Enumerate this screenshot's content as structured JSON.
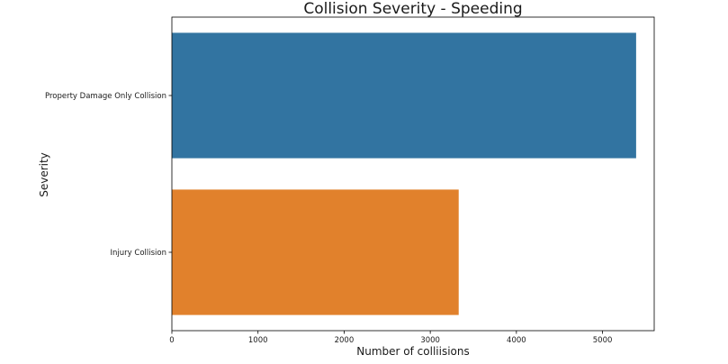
{
  "chart_data": {
    "type": "bar",
    "orientation": "horizontal",
    "title": "Collision Severity - Speeding",
    "xlabel": "Number of colliisions",
    "ylabel": "Severity",
    "categories": [
      "Property Damage Only Collision",
      "Injury Collision"
    ],
    "values": [
      5390,
      3330
    ],
    "colors": [
      "#3274a1",
      "#e1812c"
    ],
    "xlim": [
      0,
      5600
    ],
    "xticks": [
      0,
      1000,
      2000,
      3000,
      4000,
      5000
    ],
    "grid": false
  }
}
